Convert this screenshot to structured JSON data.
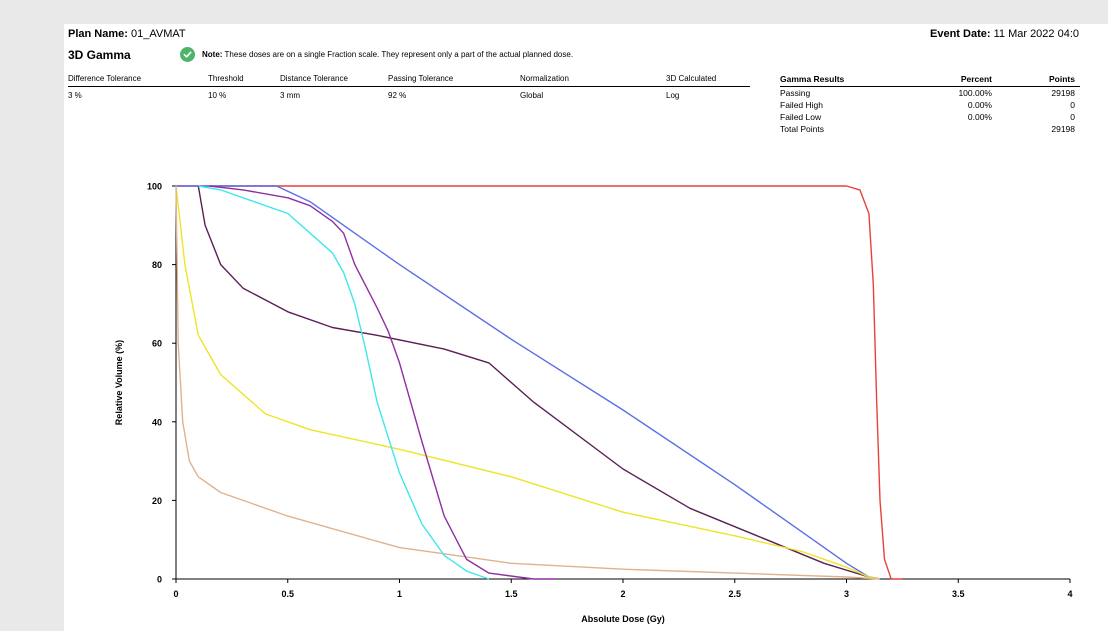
{
  "header": {
    "plan_name_label": "Plan Name:",
    "plan_name_value": "01_AVMAT",
    "event_date_label": "Event Date:",
    "event_date_value": "11 Mar 2022 04:0"
  },
  "section": {
    "title": "3D Gamma",
    "note_label": "Note:",
    "note_text": "These doses are on a single Fraction scale. They represent only a part of the actual planned dose."
  },
  "parameters": {
    "headers": [
      "Difference Tolerance",
      "Threshold",
      "Distance Tolerance",
      "Passing Tolerance",
      "Normalization",
      "3D Calculated"
    ],
    "values": [
      "3 %",
      "10 %",
      "3 mm",
      "92 %",
      "Global",
      "Log"
    ]
  },
  "gamma_results": {
    "headers": [
      "Gamma Results",
      "Percent",
      "Points"
    ],
    "rows": [
      {
        "label": "Passing",
        "percent": "100.00%",
        "points": "29198"
      },
      {
        "label": "Failed High",
        "percent": "0.00%",
        "points": "0"
      },
      {
        "label": "Failed Low",
        "percent": "0.00%",
        "points": "0"
      },
      {
        "label": "Total Points",
        "percent": "",
        "points": "29198"
      }
    ]
  },
  "chart_data": {
    "type": "line",
    "title": "",
    "xlabel": "Absolute Dose (Gy)",
    "ylabel": "Relative Volume (%)",
    "xlim": [
      0,
      4
    ],
    "ylim": [
      0,
      100
    ],
    "xticks": [
      0,
      0.5,
      1,
      1.5,
      2,
      2.5,
      3,
      3.5,
      4
    ],
    "yticks": [
      0,
      20,
      40,
      60,
      80,
      100
    ],
    "grid": false,
    "legend": "none",
    "series": [
      {
        "color": "#e8413c",
        "points": [
          [
            0,
            100
          ],
          [
            3.0,
            100
          ],
          [
            3.06,
            99
          ],
          [
            3.1,
            93
          ],
          [
            3.12,
            75
          ],
          [
            3.135,
            45
          ],
          [
            3.15,
            20
          ],
          [
            3.17,
            5
          ],
          [
            3.2,
            0
          ],
          [
            3.25,
            0
          ]
        ]
      },
      {
        "color": "#5b6ee8",
        "points": [
          [
            0,
            100
          ],
          [
            0.45,
            100
          ],
          [
            0.6,
            96
          ],
          [
            0.8,
            88
          ],
          [
            1.0,
            80
          ],
          [
            1.5,
            61
          ],
          [
            2.0,
            43
          ],
          [
            2.5,
            24
          ],
          [
            2.8,
            12
          ],
          [
            3.0,
            4
          ],
          [
            3.1,
            0.5
          ],
          [
            3.15,
            0
          ]
        ]
      },
      {
        "color": "#5a1f55",
        "points": [
          [
            0.1,
            100
          ],
          [
            0.13,
            90
          ],
          [
            0.2,
            80
          ],
          [
            0.3,
            74
          ],
          [
            0.5,
            68
          ],
          [
            0.7,
            64
          ],
          [
            0.9,
            62
          ],
          [
            1.2,
            58.5
          ],
          [
            1.4,
            55
          ],
          [
            1.6,
            45
          ],
          [
            2.0,
            28
          ],
          [
            2.3,
            18
          ],
          [
            2.6,
            11
          ],
          [
            2.9,
            4
          ],
          [
            3.1,
            0.5
          ],
          [
            3.15,
            0
          ]
        ]
      },
      {
        "color": "#ede528",
        "points": [
          [
            0,
            100
          ],
          [
            0.04,
            80
          ],
          [
            0.1,
            62
          ],
          [
            0.2,
            52
          ],
          [
            0.4,
            42
          ],
          [
            0.6,
            38
          ],
          [
            1.0,
            33
          ],
          [
            1.5,
            26
          ],
          [
            2.0,
            17
          ],
          [
            2.5,
            11
          ],
          [
            2.8,
            7
          ],
          [
            3.0,
            3
          ],
          [
            3.1,
            0.5
          ],
          [
            3.15,
            0
          ]
        ]
      },
      {
        "color": "#dfb28f",
        "points": [
          [
            0,
            100
          ],
          [
            0.01,
            60
          ],
          [
            0.03,
            40
          ],
          [
            0.06,
            30
          ],
          [
            0.1,
            26
          ],
          [
            0.2,
            22
          ],
          [
            0.5,
            16
          ],
          [
            1.0,
            8
          ],
          [
            1.5,
            4
          ],
          [
            2.0,
            2.5
          ],
          [
            2.5,
            1.5
          ],
          [
            3.0,
            0.5
          ],
          [
            3.15,
            0
          ]
        ]
      },
      {
        "color": "#3fe7ea",
        "points": [
          [
            0.1,
            100
          ],
          [
            0.2,
            99
          ],
          [
            0.3,
            97
          ],
          [
            0.5,
            93
          ],
          [
            0.6,
            88
          ],
          [
            0.7,
            83
          ],
          [
            0.75,
            78
          ],
          [
            0.8,
            70
          ],
          [
            0.85,
            58
          ],
          [
            0.9,
            45
          ],
          [
            1.0,
            27
          ],
          [
            1.1,
            14
          ],
          [
            1.2,
            6
          ],
          [
            1.3,
            2
          ],
          [
            1.4,
            0
          ]
        ]
      },
      {
        "color": "#8e2fa3",
        "points": [
          [
            0.15,
            100
          ],
          [
            0.3,
            99
          ],
          [
            0.5,
            97
          ],
          [
            0.6,
            95
          ],
          [
            0.7,
            91
          ],
          [
            0.75,
            88
          ],
          [
            0.8,
            80
          ],
          [
            0.9,
            69
          ],
          [
            0.95,
            63
          ],
          [
            1.0,
            55
          ],
          [
            1.1,
            35
          ],
          [
            1.2,
            16
          ],
          [
            1.3,
            5
          ],
          [
            1.4,
            1.5
          ],
          [
            1.6,
            0
          ],
          [
            1.7,
            0
          ]
        ]
      }
    ]
  }
}
